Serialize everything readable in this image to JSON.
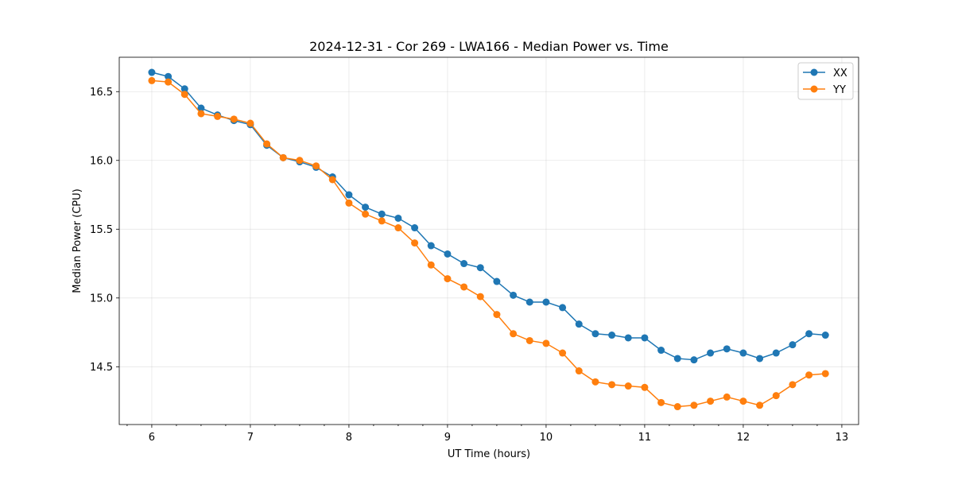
{
  "chart_data": {
    "type": "line",
    "title": "2024-12-31 - Cor 269 - LWA166 - Median Power vs. Time",
    "xlabel": "UT Time (hours)",
    "ylabel": "Median Power (CPU)",
    "xlim": [
      5.67,
      13.17
    ],
    "ylim": [
      14.08,
      16.75
    ],
    "xticks": [
      6,
      7,
      8,
      9,
      10,
      11,
      12,
      13
    ],
    "yticks": [
      14.5,
      15.0,
      15.5,
      16.0,
      16.5
    ],
    "ytick_labels": [
      "14.5",
      "15.0",
      "15.5",
      "16.0",
      "16.5"
    ],
    "grid": true,
    "legend_position": "top-right",
    "x": [
      6.0,
      6.1667,
      6.3333,
      6.5,
      6.6667,
      6.8333,
      7.0,
      7.1667,
      7.3333,
      7.5,
      7.6667,
      7.8333,
      8.0,
      8.1667,
      8.3333,
      8.5,
      8.6667,
      8.8333,
      9.0,
      9.1667,
      9.3333,
      9.5,
      9.6667,
      9.8333,
      10.0,
      10.1667,
      10.3333,
      10.5,
      10.6667,
      10.8333,
      11.0,
      11.1667,
      11.3333,
      11.5,
      11.6667,
      11.8333,
      12.0,
      12.1667,
      12.3333,
      12.5,
      12.6667,
      12.8333
    ],
    "series": [
      {
        "name": "XX",
        "color": "#1f77b4",
        "values": [
          16.64,
          16.61,
          16.52,
          16.38,
          16.33,
          16.29,
          16.26,
          16.11,
          16.02,
          15.99,
          15.95,
          15.88,
          15.75,
          15.66,
          15.61,
          15.58,
          15.51,
          15.38,
          15.32,
          15.25,
          15.22,
          15.12,
          15.02,
          14.97,
          14.97,
          14.93,
          14.81,
          14.74,
          14.73,
          14.71,
          14.71,
          14.62,
          14.56,
          14.55,
          14.6,
          14.63,
          14.6,
          14.56,
          14.6,
          14.66,
          14.74,
          14.73
        ]
      },
      {
        "name": "YY",
        "color": "#ff7f0e",
        "values": [
          16.58,
          16.57,
          16.48,
          16.34,
          16.32,
          16.3,
          16.27,
          16.12,
          16.02,
          16.0,
          15.96,
          15.86,
          15.69,
          15.61,
          15.56,
          15.51,
          15.4,
          15.24,
          15.14,
          15.08,
          15.01,
          14.88,
          14.74,
          14.69,
          14.67,
          14.6,
          14.47,
          14.39,
          14.37,
          14.36,
          14.35,
          14.24,
          14.21,
          14.22,
          14.25,
          14.28,
          14.25,
          14.22,
          14.29,
          14.37,
          14.44,
          14.45
        ]
      }
    ]
  }
}
